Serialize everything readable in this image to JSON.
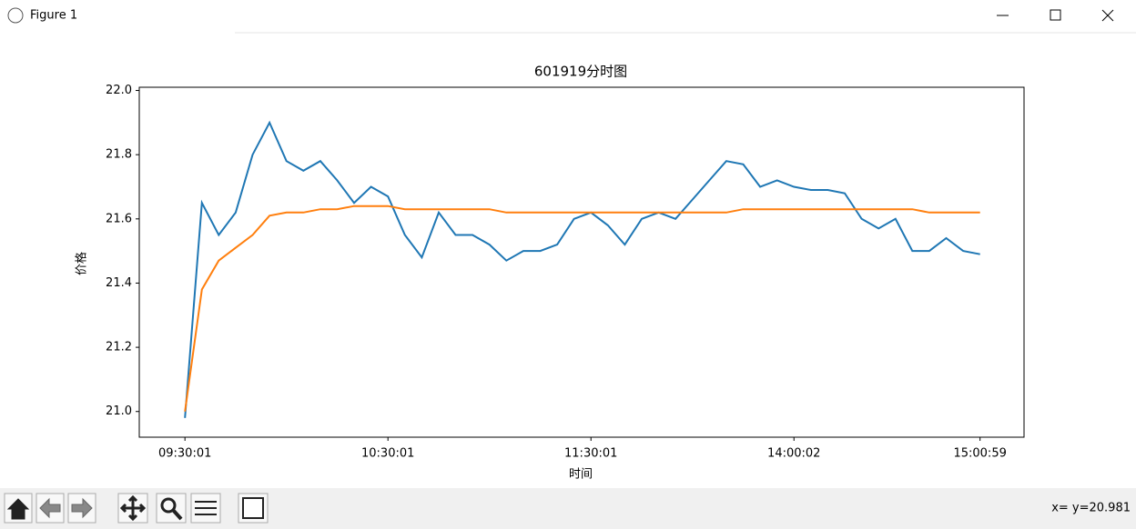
{
  "window": {
    "title": "Figure 1",
    "status": "x= y=20.981"
  },
  "chart_data": {
    "type": "line",
    "title": "601919分时图",
    "x_label": "时间",
    "y_label": "价格",
    "categories": [
      "09:30:01",
      null,
      null,
      null,
      null,
      null,
      null,
      null,
      null,
      null,
      null,
      null,
      "10:30:01",
      null,
      null,
      null,
      null,
      null,
      null,
      null,
      null,
      null,
      null,
      null,
      "11:30:01",
      null,
      null,
      null,
      null,
      null,
      null,
      null,
      null,
      null,
      null,
      null,
      "14:00:02",
      null,
      null,
      null,
      null,
      null,
      null,
      null,
      null,
      null,
      null,
      "15:00:59"
    ],
    "xlim": [
      -2.7,
      49.6
    ],
    "ylim": [
      20.92,
      22.01
    ],
    "yticks": [
      {
        "value": 21.0,
        "label": "21.0"
      },
      21.2,
      21.4,
      21.6,
      21.8,
      {
        "value": 22.0,
        "label": "22.0"
      }
    ],
    "series": [
      {
        "color": "#1f77b4",
        "values": [
          20.98,
          21.65,
          21.55,
          21.62,
          21.8,
          21.9,
          21.78,
          21.75,
          21.78,
          21.72,
          21.65,
          21.7,
          21.67,
          21.55,
          21.48,
          21.62,
          21.55,
          21.55,
          21.52,
          21.47,
          21.5,
          21.5,
          21.52,
          21.6,
          21.62,
          21.58,
          21.52,
          21.6,
          21.62,
          21.6,
          21.66,
          21.72,
          21.78,
          21.77,
          21.7,
          21.72,
          21.7,
          21.69,
          21.69,
          21.68,
          21.6,
          21.57,
          21.6,
          21.5,
          21.5,
          21.54,
          21.5,
          21.49
        ]
      },
      {
        "color": "#ff7f0e",
        "values": [
          21.0,
          21.38,
          21.47,
          21.51,
          21.55,
          21.61,
          21.62,
          21.62,
          21.63,
          21.63,
          21.64,
          21.64,
          21.64,
          21.63,
          21.63,
          21.63,
          21.63,
          21.63,
          21.63,
          21.62,
          21.62,
          21.62,
          21.62,
          21.62,
          21.62,
          21.62,
          21.62,
          21.62,
          21.62,
          21.62,
          21.62,
          21.62,
          21.62,
          21.63,
          21.63,
          21.63,
          21.63,
          21.63,
          21.63,
          21.63,
          21.63,
          21.63,
          21.63,
          21.63,
          21.62,
          21.62,
          21.62,
          21.62
        ]
      }
    ]
  }
}
